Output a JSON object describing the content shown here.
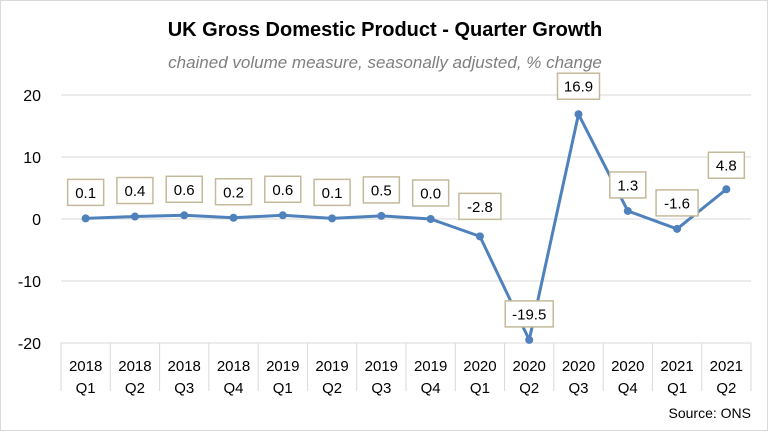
{
  "chart_data": {
    "type": "line",
    "title": "UK Gross Domestic Product - Quarter Growth",
    "subtitle": "chained volume measure, seasonally adjusted, % change",
    "source": "Source: ONS",
    "categories": [
      [
        "2018",
        "Q1"
      ],
      [
        "2018",
        "Q2"
      ],
      [
        "2018",
        "Q3"
      ],
      [
        "2018",
        "Q4"
      ],
      [
        "2019",
        "Q1"
      ],
      [
        "2019",
        "Q2"
      ],
      [
        "2019",
        "Q3"
      ],
      [
        "2019",
        "Q4"
      ],
      [
        "2020",
        "Q1"
      ],
      [
        "2020",
        "Q2"
      ],
      [
        "2020",
        "Q3"
      ],
      [
        "2020",
        "Q4"
      ],
      [
        "2021",
        "Q1"
      ],
      [
        "2021",
        "Q2"
      ]
    ],
    "series": [
      {
        "values": [
          0.1,
          0.4,
          0.6,
          0.2,
          0.6,
          0.1,
          0.5,
          0.0,
          -2.8,
          -19.5,
          16.9,
          1.3,
          -1.6,
          4.8
        ],
        "labels": [
          "0.1",
          "0.4",
          "0.6",
          "0.2",
          "0.6",
          "0.1",
          "0.5",
          "0.0",
          "-2.8",
          "-19.5",
          "16.9",
          "1.3",
          "-1.6",
          "4.8"
        ]
      }
    ],
    "yticks": [
      20,
      10,
      0,
      -10,
      -20
    ],
    "ylim": [
      -20,
      20
    ],
    "grid": true,
    "legend": "none",
    "colors": {
      "line": "#4f81bd",
      "grid": "#d9d9d9",
      "label_border": "#c4b99a"
    }
  }
}
